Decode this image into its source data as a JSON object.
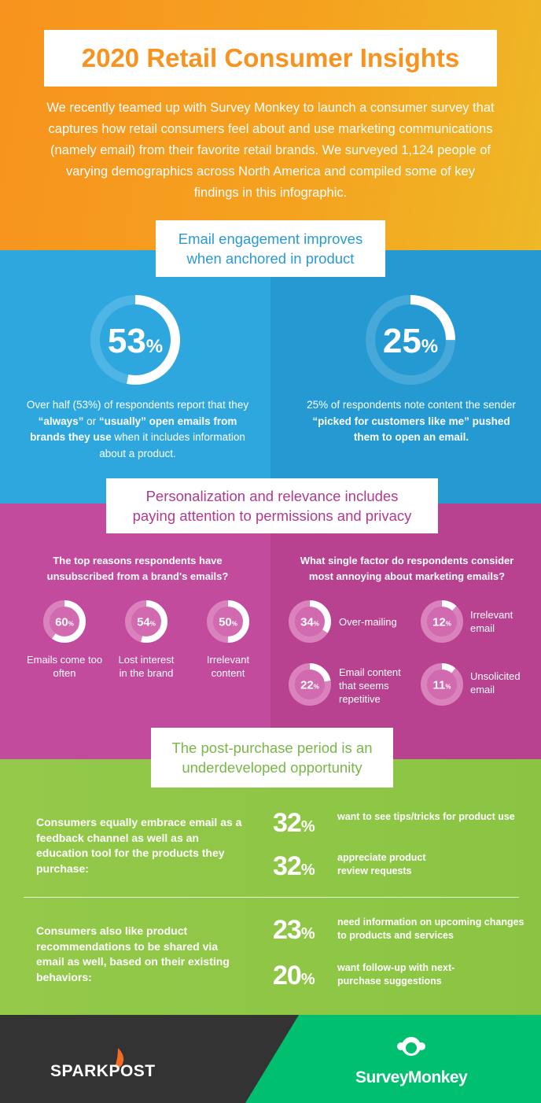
{
  "header": {
    "title": "2020 Retail Consumer Insights",
    "intro": "We recently teamed up with Survey Monkey to launch a consumer survey that captures how retail consumers feel about and use marketing communications (namely email) from their favorite retail brands. We surveyed 1,124 people of varying demographics across North America and compiled some of key findings in this infographic."
  },
  "engagement": {
    "heading": [
      "Email engagement improves",
      "when anchored in product"
    ],
    "stats": [
      {
        "value": 53,
        "unit": "%",
        "text": [
          "Over half (53%) of respondents report that they ",
          "“always”",
          " or ",
          "“usually”",
          " open emails from brands they use",
          " when it includes information about a product."
        ]
      },
      {
        "value": 25,
        "unit": "%",
        "text": [
          "25% of respondents note content the sender ",
          "“picked for customers like me”",
          " pushed them to open an email."
        ]
      }
    ]
  },
  "personalization": {
    "heading": [
      "Personalization and relevance includes",
      "paying attention to permissions and privacy"
    ],
    "unsubscribe": {
      "question": "The top reasons respondents have unsubscribed from a brand's emails?",
      "items": [
        {
          "value": 60,
          "unit": "%",
          "label": "Emails come too often"
        },
        {
          "value": 54,
          "unit": "%",
          "label": "Lost interest in the brand"
        },
        {
          "value": 50,
          "unit": "%",
          "label": "Irrelevant content"
        }
      ]
    },
    "annoying": {
      "question": "What single factor do respondents consider most annoying about marketing emails?",
      "items": [
        {
          "value": 34,
          "unit": "%",
          "label": "Over-mailing"
        },
        {
          "value": 12,
          "unit": "%",
          "label": "Irrelevant email"
        },
        {
          "value": 22,
          "unit": "%",
          "label": "Email content that seems repetitive"
        },
        {
          "value": 11,
          "unit": "%",
          "label": "Unsolicited email"
        }
      ]
    }
  },
  "post_purchase": {
    "heading": [
      "The post-purchase period is an",
      "underdeveloped opportunity"
    ],
    "groups": [
      {
        "text": "Consumers equally embrace email as a feedback channel as well as an education tool for the products they purchase:",
        "stats": [
          {
            "value": 32,
            "unit": "%",
            "label": "want to see tips/tricks for product use"
          },
          {
            "value": 32,
            "unit": "%",
            "label": "appreciate product review requests"
          }
        ]
      },
      {
        "text": "Consumers also like product recommendations to be shared via email as well, based on their existing behaviors:",
        "stats": [
          {
            "value": 23,
            "unit": "%",
            "label": "need information on upcoming changes to products and services"
          },
          {
            "value": 20,
            "unit": "%",
            "label": "want follow-up with next-purchase suggestions"
          }
        ]
      }
    ]
  },
  "footer": {
    "left": "SPARKPOST",
    "right": "SurveyMonkey"
  }
}
